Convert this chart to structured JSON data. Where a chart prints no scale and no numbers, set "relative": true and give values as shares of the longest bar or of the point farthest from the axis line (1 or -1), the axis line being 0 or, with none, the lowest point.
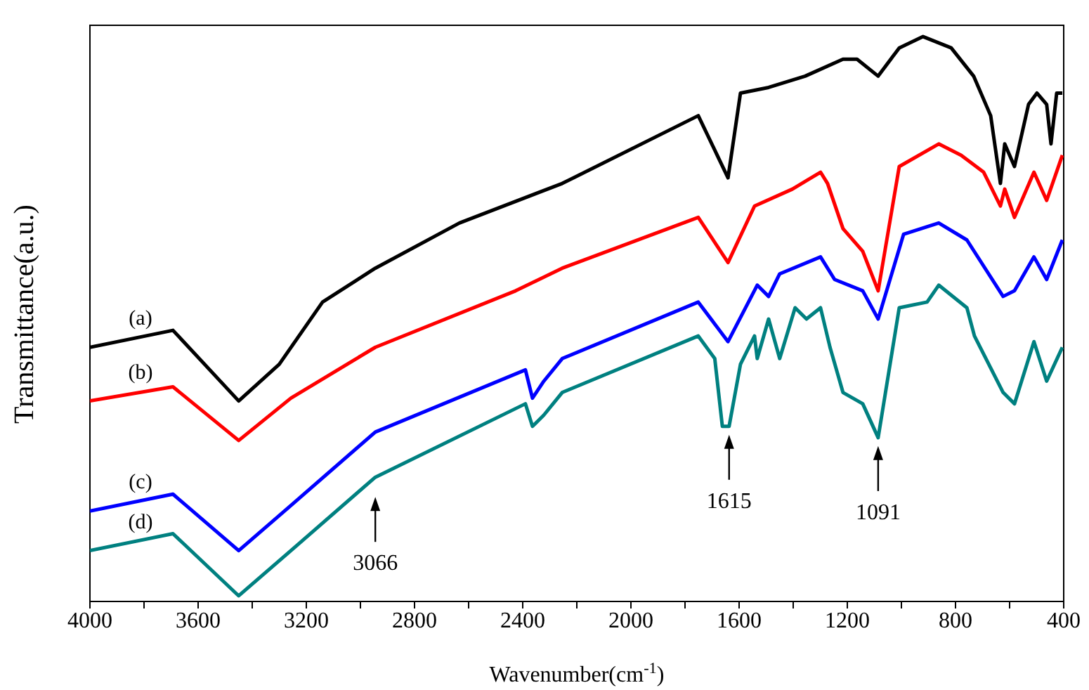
{
  "chart_data": {
    "type": "line",
    "relative": true,
    "xlabel": "Wavenumber(cm$^{-1}$)",
    "ylabel": "Transmittance(a.u.)",
    "xlim": [
      4000,
      400
    ],
    "xticks": [
      4000,
      {
        "value": 3800,
        "label": null
      },
      3600,
      {
        "value": 3400,
        "label": null
      },
      3200,
      {
        "value": 3000,
        "label": null
      },
      2800,
      {
        "value": 2600,
        "label": null
      },
      2400,
      {
        "value": 2200,
        "label": null
      },
      2000,
      {
        "value": 1800,
        "label": null
      },
      1600,
      {
        "value": 1400,
        "label": null
      },
      1200,
      {
        "value": 1000,
        "label": null
      },
      800,
      {
        "value": 600,
        "label": null
      },
      400
    ],
    "series": [
      {
        "name": "(a)",
        "color": "#000000",
        "x": [
          4000,
          3693,
          3450,
          3300,
          3140,
          2945,
          2634,
          2254,
          1751,
          1641,
          1595,
          1491,
          1356,
          1216,
          1164,
          1086,
          1008,
          920,
          816,
          733,
          670,
          634,
          618,
          582,
          530,
          499,
          463,
          447,
          426,
          405
        ],
        "values": [
          0.45,
          0.48,
          0.355,
          0.42,
          0.53,
          0.59,
          0.67,
          0.74,
          0.86,
          0.75,
          0.9,
          0.91,
          0.93,
          0.96,
          0.96,
          0.93,
          0.98,
          1,
          0.98,
          0.93,
          0.86,
          0.74,
          0.81,
          0.77,
          0.88,
          0.9,
          0.88,
          0.81,
          0.9,
          0.9
        ]
      },
      {
        "name": "(b)",
        "color": "#ff0000",
        "x": [
          4000,
          3693,
          3450,
          3257,
          2945,
          2426,
          2254,
          1751,
          1641,
          1543,
          1403,
          1299,
          1273,
          1216,
          1143,
          1086,
          1008,
          862,
          779,
          696,
          634,
          618,
          582,
          510,
          463,
          405
        ],
        "values": [
          0.355,
          0.38,
          0.285,
          0.36,
          0.45,
          0.55,
          0.59,
          0.68,
          0.6,
          0.7,
          0.73,
          0.76,
          0.74,
          0.66,
          0.62,
          0.55,
          0.77,
          0.81,
          0.79,
          0.76,
          0.7,
          0.73,
          0.68,
          0.76,
          0.71,
          0.79
        ]
      },
      {
        "name": "(c)",
        "color": "#0000ff",
        "x": [
          4000,
          3693,
          3450,
          3257,
          2945,
          2390,
          2364,
          2322,
          2254,
          1751,
          1641,
          1533,
          1491,
          1450,
          1299,
          1247,
          1143,
          1086,
          992,
          862,
          758,
          624,
          582,
          510,
          463,
          405
        ],
        "values": [
          0.16,
          0.19,
          0.09,
          0.17,
          0.3,
          0.41,
          0.36,
          0.39,
          0.43,
          0.53,
          0.46,
          0.56,
          0.54,
          0.58,
          0.61,
          0.57,
          0.55,
          0.5,
          0.65,
          0.67,
          0.64,
          0.54,
          0.55,
          0.61,
          0.57,
          0.64
        ]
      },
      {
        "name": "(d)",
        "color": "#008080",
        "x": [
          4000,
          3693,
          3450,
          3257,
          2945,
          2390,
          2364,
          2322,
          2254,
          1751,
          1690,
          1662,
          1637,
          1595,
          1543,
          1533,
          1491,
          1450,
          1393,
          1351,
          1299,
          1264,
          1216,
          1143,
          1086,
          1008,
          905,
          862,
          758,
          730,
          624,
          582,
          510,
          463,
          405
        ],
        "values": [
          0.09,
          0.12,
          0.01,
          0.09,
          0.22,
          0.35,
          0.31,
          0.33,
          0.37,
          0.47,
          0.43,
          0.31,
          0.31,
          0.42,
          0.47,
          0.43,
          0.5,
          0.43,
          0.52,
          0.5,
          0.52,
          0.45,
          0.37,
          0.35,
          0.29,
          0.52,
          0.53,
          0.56,
          0.52,
          0.47,
          0.37,
          0.35,
          0.46,
          0.39,
          0.45
        ]
      }
    ],
    "annotations": [
      {
        "text": "3066",
        "x": 2945,
        "y": 0.2
      },
      {
        "text": "1615",
        "x": 1637,
        "y": 0.31
      },
      {
        "text": "1091",
        "x": 1086,
        "y": 0.29
      }
    ]
  }
}
